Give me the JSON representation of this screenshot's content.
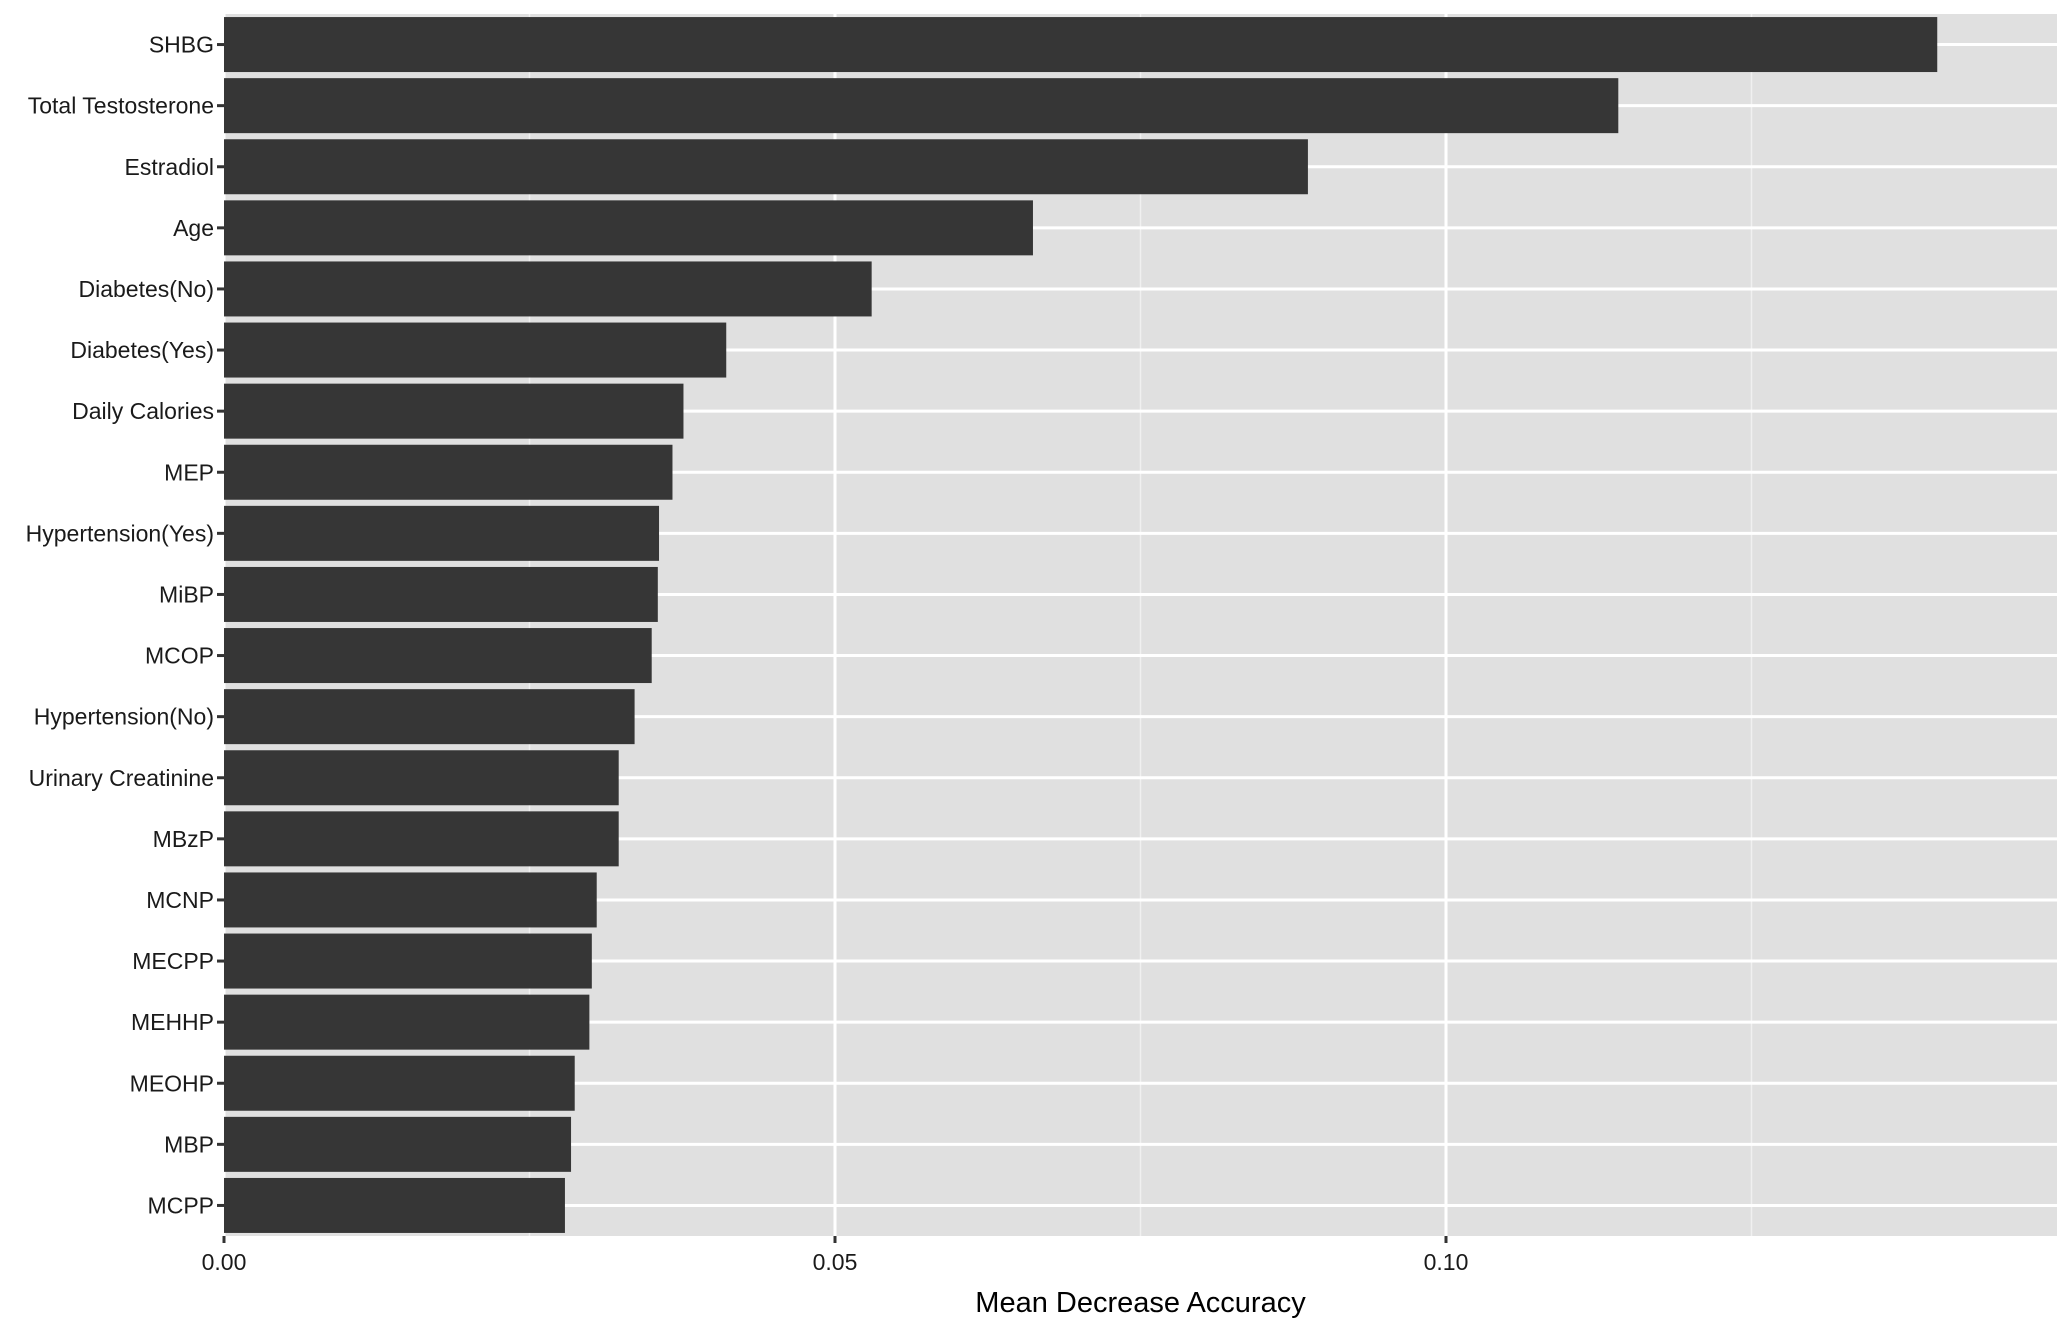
{
  "chart_data": {
    "type": "bar",
    "orientation": "horizontal",
    "xlabel": "Mean Decrease Accuracy",
    "xlim": [
      0,
      0.15
    ],
    "x_ticks": [
      0,
      0.05,
      0.1
    ],
    "x_tick_labels": [
      "0.00",
      "0.05",
      "0.10"
    ],
    "grid": true,
    "categories": [
      "SHBG",
      "Total Testosterone",
      "Estradiol",
      "Age",
      "Diabetes(No)",
      "Diabetes(Yes)",
      "Daily Calories",
      "MEP",
      "Hypertension(Yes)",
      "MiBP",
      "MCOP",
      "Hypertension(No)",
      "Urinary Creatinine",
      "MBzP",
      "MCNP",
      "MECPP",
      "MEHHP",
      "MEOHP",
      "MBP",
      "MCPP"
    ],
    "values": [
      0.1402,
      0.1141,
      0.0887,
      0.0662,
      0.053,
      0.0411,
      0.0376,
      0.0367,
      0.0356,
      0.0355,
      0.035,
      0.0336,
      0.0323,
      0.0323,
      0.0305,
      0.0301,
      0.0299,
      0.0287,
      0.0284,
      0.0279
    ],
    "colors": {
      "bar": "#363636",
      "panel": "#e0e0e0",
      "grid_major": "#ffffff",
      "grid_minor": "#f0f0f0",
      "text": "#1a1a1a",
      "tick": "#333333"
    }
  }
}
